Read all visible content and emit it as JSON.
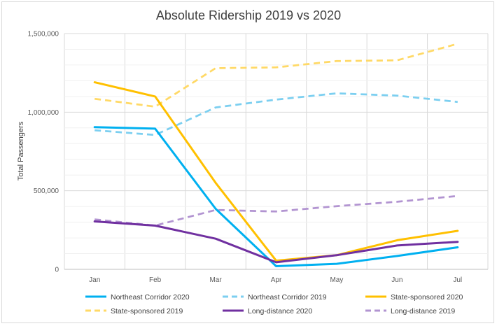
{
  "chart_data": {
    "type": "line",
    "title": "Absolute Ridership 2019 vs 2020",
    "xlabel": "",
    "ylabel": "Total Passengers",
    "categories": [
      "Jan",
      "Feb",
      "Mar",
      "Apr",
      "May",
      "Jun",
      "Jul"
    ],
    "ylim": [
      0,
      1500000
    ],
    "yticks": [
      0,
      500000,
      1000000,
      1500000
    ],
    "ytick_labels": [
      "0",
      "500,000",
      "1,000,000",
      "1,500,000"
    ],
    "grid": true,
    "legend_position": "bottom",
    "series": [
      {
        "name": "Northeast Corridor 2020",
        "color": "#00b0f0",
        "dash": false,
        "values": [
          905000,
          895000,
          385000,
          20000,
          35000,
          85000,
          140000
        ]
      },
      {
        "name": "Northeast Corridor 2019",
        "color": "#7ccff0",
        "dash": true,
        "values": [
          885000,
          855000,
          1030000,
          1080000,
          1120000,
          1105000,
          1065000
        ]
      },
      {
        "name": "State-sponsored 2020",
        "color": "#ffc000",
        "dash": false,
        "values": [
          1190000,
          1100000,
          550000,
          55000,
          90000,
          185000,
          245000
        ]
      },
      {
        "name": "State-sponsored 2019",
        "color": "#ffd966",
        "dash": true,
        "values": [
          1085000,
          1035000,
          1280000,
          1285000,
          1325000,
          1330000,
          1435000
        ]
      },
      {
        "name": "Long-distance 2020",
        "color": "#7030a0",
        "dash": false,
        "values": [
          305000,
          278000,
          195000,
          45000,
          90000,
          152000,
          175000
        ]
      },
      {
        "name": "Long-distance 2019",
        "color": "#b294d1",
        "dash": true,
        "values": [
          318000,
          278000,
          378000,
          368000,
          402000,
          430000,
          467000
        ]
      }
    ]
  }
}
